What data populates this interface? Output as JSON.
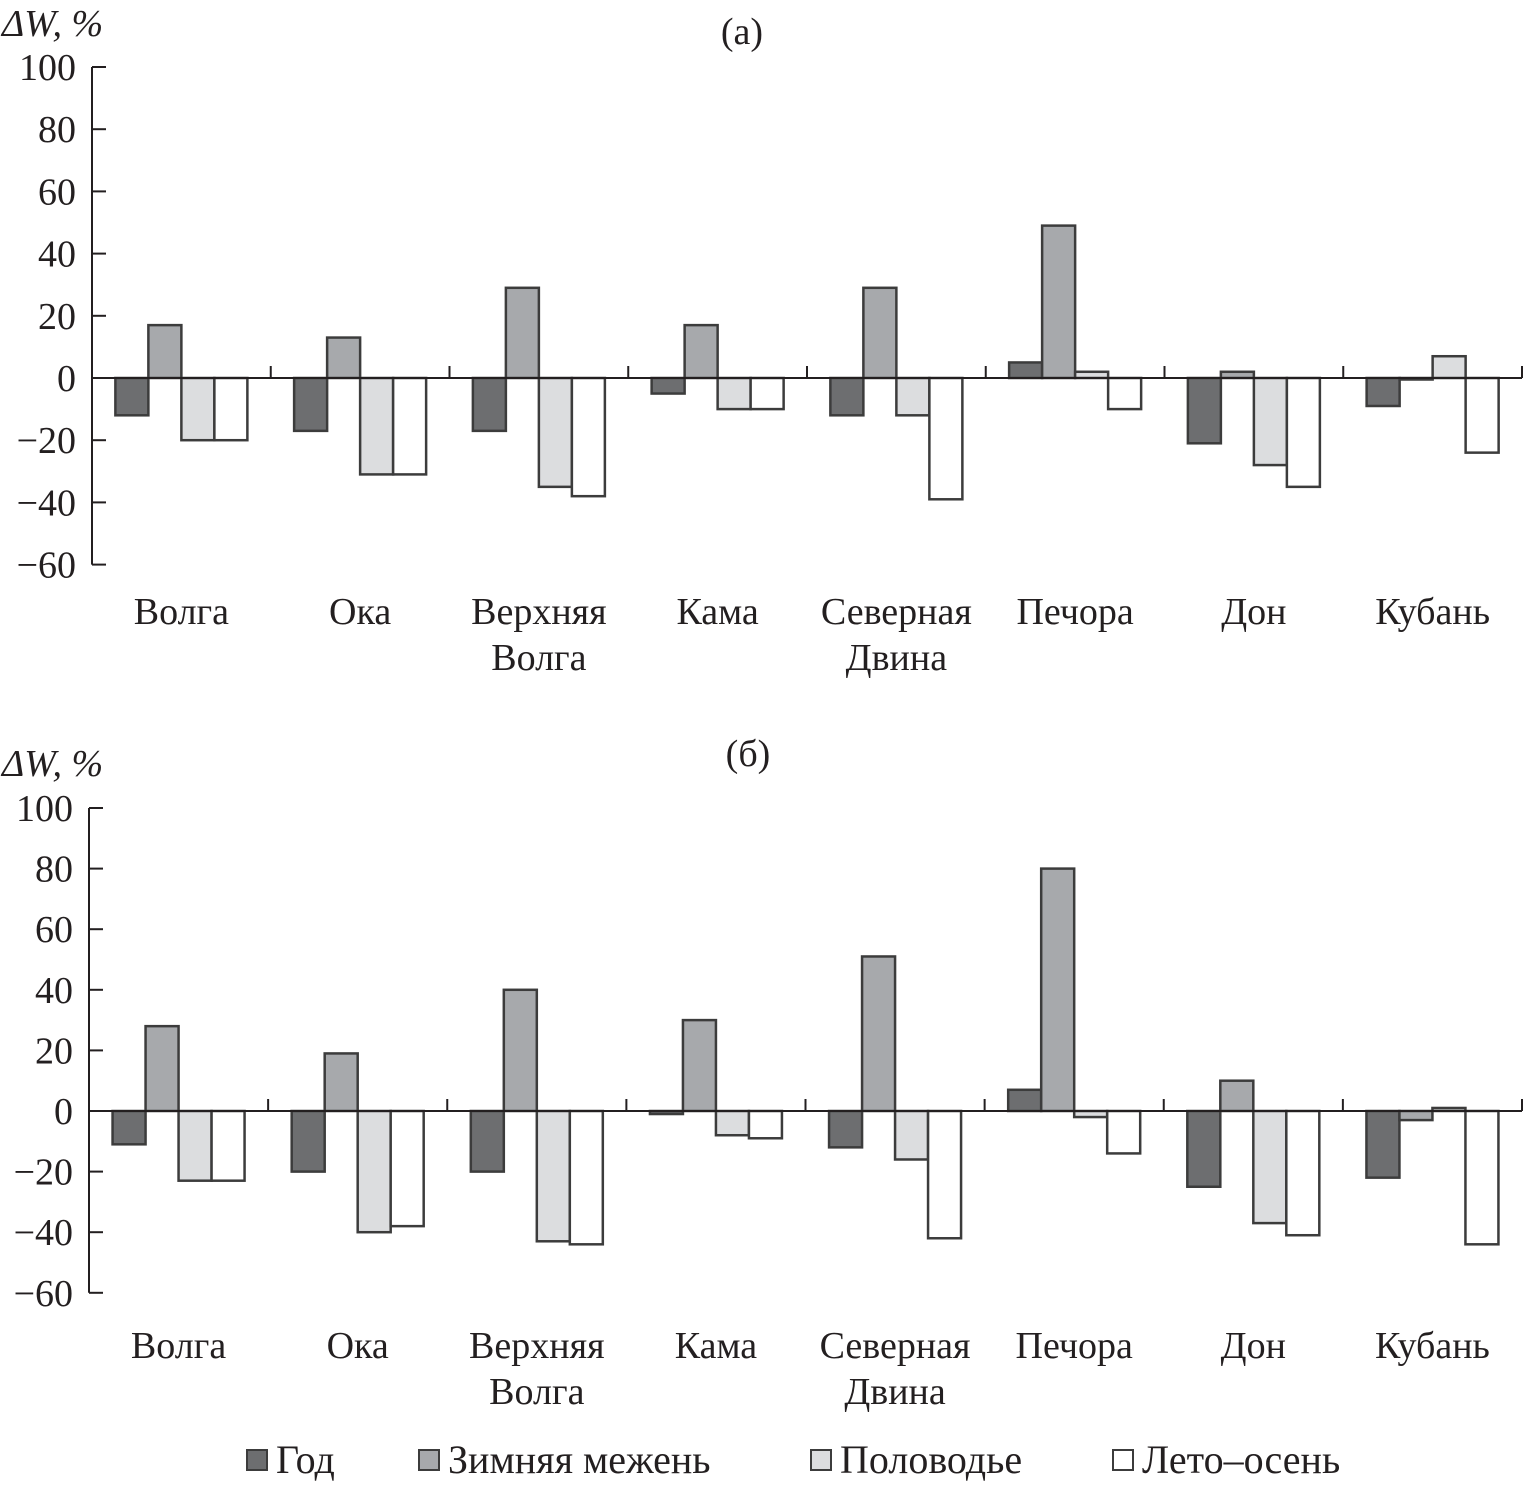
{
  "chart_data": [
    {
      "type": "bar",
      "panel_label": "(a)",
      "ylabel": "ΔW, %",
      "ylim": [
        -60,
        100
      ],
      "yticks": [
        100,
        80,
        60,
        40,
        20,
        0,
        -20,
        -40,
        -60
      ],
      "ytick_labels": [
        "100",
        "80",
        "60",
        "40",
        "20",
        "0",
        "−20",
        "−40",
        "−60"
      ],
      "categories": [
        [
          "Волга"
        ],
        [
          "Ока"
        ],
        [
          "Верхняя",
          "Волга"
        ],
        [
          "Кама"
        ],
        [
          "Северная",
          "Двина"
        ],
        [
          "Печора"
        ],
        [
          "Дон"
        ],
        [
          "Кубань"
        ]
      ],
      "series": [
        {
          "name": "Год",
          "values": [
            -12,
            -17,
            -17,
            -5,
            -12,
            5,
            -21,
            -9
          ]
        },
        {
          "name": "Зимняя межень",
          "values": [
            17,
            13,
            29,
            17,
            29,
            49,
            2,
            0
          ]
        },
        {
          "name": "Половодье",
          "values": [
            -20,
            -31,
            -35,
            -10,
            -12,
            2,
            -28,
            7
          ]
        },
        {
          "name": "Лето–осень",
          "values": [
            -20,
            -31,
            -38,
            -10,
            -39,
            -10,
            -35,
            -24
          ]
        }
      ]
    },
    {
      "type": "bar",
      "panel_label": "(б)",
      "ylabel": "ΔW, %",
      "ylim": [
        -60,
        100
      ],
      "yticks": [
        100,
        80,
        60,
        40,
        20,
        0,
        -20,
        -40,
        -60
      ],
      "ytick_labels": [
        "100",
        "80",
        "60",
        "40",
        "20",
        "0",
        "−20",
        "−40",
        "−60"
      ],
      "categories": [
        [
          "Волга"
        ],
        [
          "Ока"
        ],
        [
          "Верхняя",
          "Волга"
        ],
        [
          "Кама"
        ],
        [
          "Северная",
          "Двина"
        ],
        [
          "Печора"
        ],
        [
          "Дон"
        ],
        [
          "Кубань"
        ]
      ],
      "series": [
        {
          "name": "Год",
          "values": [
            -11,
            -20,
            -20,
            -1,
            -12,
            7,
            -25,
            -22
          ]
        },
        {
          "name": "Зимняя межень",
          "values": [
            28,
            19,
            40,
            30,
            51,
            80,
            10,
            -3
          ]
        },
        {
          "name": "Половодье",
          "values": [
            -23,
            -40,
            -43,
            -8,
            -16,
            -2,
            -37,
            1
          ]
        },
        {
          "name": "Лето–осень",
          "values": [
            -23,
            -38,
            -44,
            -9,
            -42,
            -14,
            -41,
            -44
          ]
        }
      ]
    }
  ],
  "legend": {
    "position": "bottom",
    "items": [
      {
        "label": "Год",
        "color": "#6d6e70"
      },
      {
        "label": "Зимняя межень",
        "color": "#a7a9ac"
      },
      {
        "label": "Половодье",
        "color": "#dcdddf"
      },
      {
        "label": "Лето–осень",
        "color": "#ffffff"
      }
    ]
  },
  "series_colors": [
    "#6d6e70",
    "#a7a9ac",
    "#dcdddf",
    "#ffffff"
  ],
  "stroke_color": "#3c3c3c"
}
